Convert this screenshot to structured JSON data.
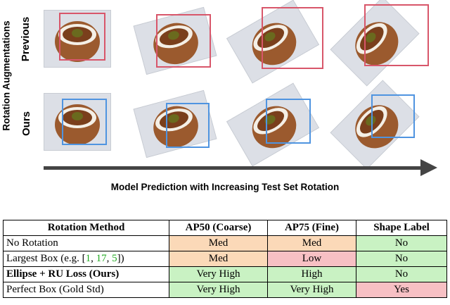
{
  "figure": {
    "y_axis_label": "Rotation Augmentations",
    "x_axis_label": "Model Prediction with Increasing Test Set Rotation",
    "rows": [
      {
        "label": "Previous",
        "color": "#d63a50",
        "box_color": "#d8566a"
      },
      {
        "label": "Ours",
        "color": "#3b7fd6",
        "box_color": "#4f94e0"
      }
    ],
    "rotations_deg": [
      0,
      -15,
      -30,
      -45
    ],
    "colors": {
      "arrow": "#444444",
      "photo_bg": "#dcdfe6",
      "pastry": "#9b5a2e",
      "cream": "#f4efe6",
      "filling": "#6a6a1e"
    }
  },
  "table": {
    "headers": [
      "Rotation Method",
      "AP50 (Coarse)",
      "AP75 (Fine)",
      "Shape Label"
    ],
    "rows": [
      {
        "method_parts": [
          {
            "text": "No Rotation"
          }
        ],
        "bold": false,
        "cells": [
          {
            "text": "Med",
            "color": "#fbd9b8"
          },
          {
            "text": "Med",
            "color": "#fbd9b8"
          },
          {
            "text": "No",
            "color": "#c9f2c3"
          }
        ]
      },
      {
        "method_parts": [
          {
            "text": "Largest Box (e.g. ["
          },
          {
            "text": "1",
            "link": true
          },
          {
            "text": ", "
          },
          {
            "text": "17",
            "link": true
          },
          {
            "text": ", "
          },
          {
            "text": "5",
            "link": true
          },
          {
            "text": "])"
          }
        ],
        "bold": false,
        "cells": [
          {
            "text": "Med",
            "color": "#fbd9b8"
          },
          {
            "text": "Low",
            "color": "#f7c0c4"
          },
          {
            "text": "No",
            "color": "#c9f2c3"
          }
        ]
      },
      {
        "method_parts": [
          {
            "text": "Ellipse + RU Loss (Ours)"
          }
        ],
        "bold": true,
        "cells": [
          {
            "text": "Very High",
            "color": "#c9f2c3"
          },
          {
            "text": "High",
            "color": "#c9f2c3"
          },
          {
            "text": "No",
            "color": "#c9f2c3"
          }
        ]
      },
      {
        "method_parts": [
          {
            "text": "Perfect Box (Gold Std)"
          }
        ],
        "bold": false,
        "cells": [
          {
            "text": "Very High",
            "color": "#c9f2c3"
          },
          {
            "text": "Very High",
            "color": "#c9f2c3"
          },
          {
            "text": "Yes",
            "color": "#f7c0c4"
          }
        ]
      }
    ]
  }
}
